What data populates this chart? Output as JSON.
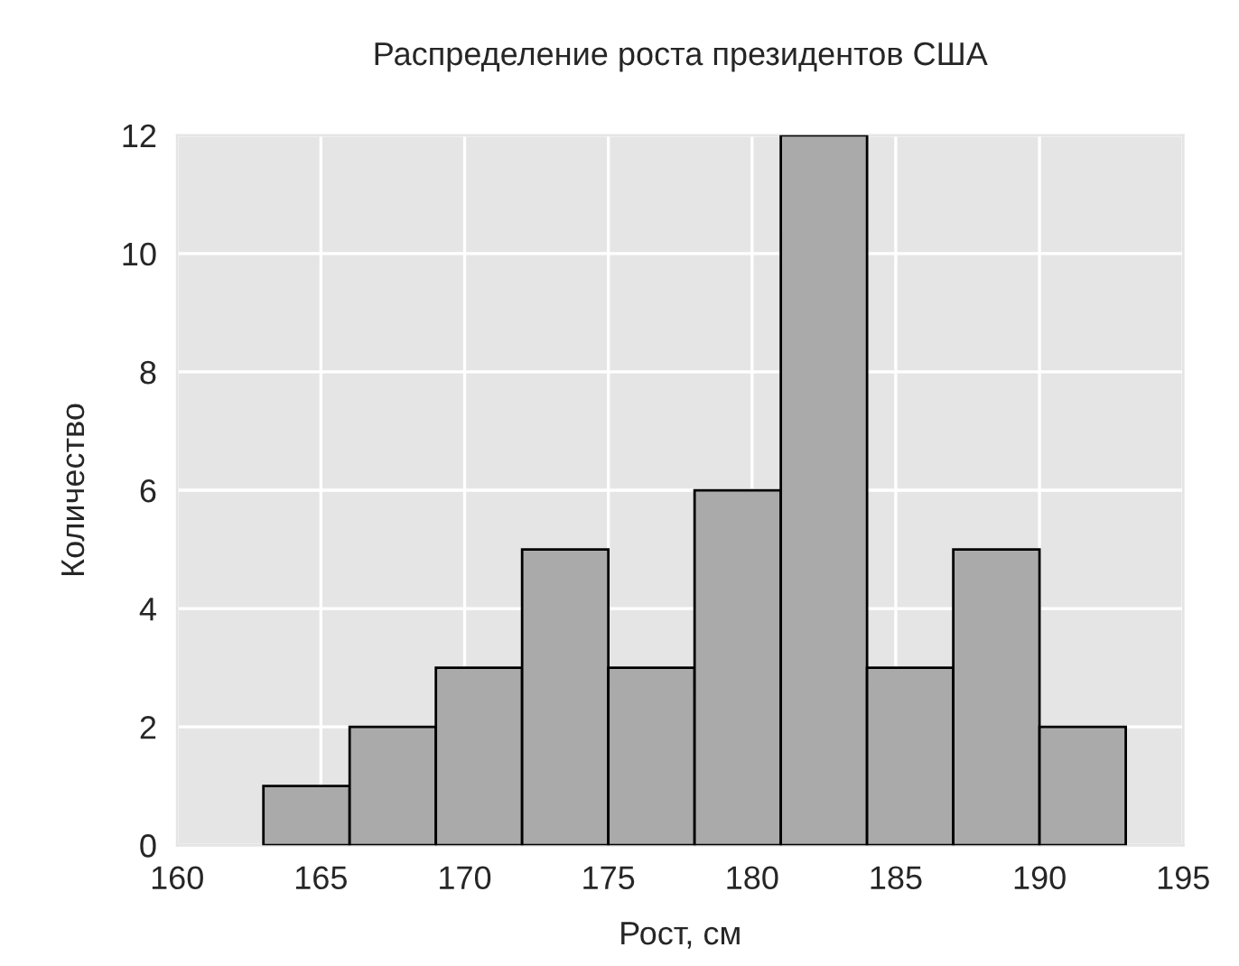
{
  "chart_data": {
    "type": "histogram",
    "title": "Распределение роста президентов США",
    "xlabel": "Рост, см",
    "ylabel": "Количество",
    "bins": [
      163,
      166,
      169,
      172,
      175,
      178,
      181,
      184,
      187,
      190,
      193
    ],
    "values": [
      1,
      2,
      3,
      5,
      3,
      6,
      12,
      3,
      5,
      2
    ],
    "color": "#aaaaaa",
    "xlim": [
      160,
      195
    ],
    "xticks": [
      160,
      165,
      170,
      175,
      180,
      185,
      190,
      195
    ],
    "ylim": [
      0,
      12
    ],
    "yticks": [
      0,
      2,
      4,
      6,
      8,
      10,
      12
    ],
    "grid": true
  }
}
